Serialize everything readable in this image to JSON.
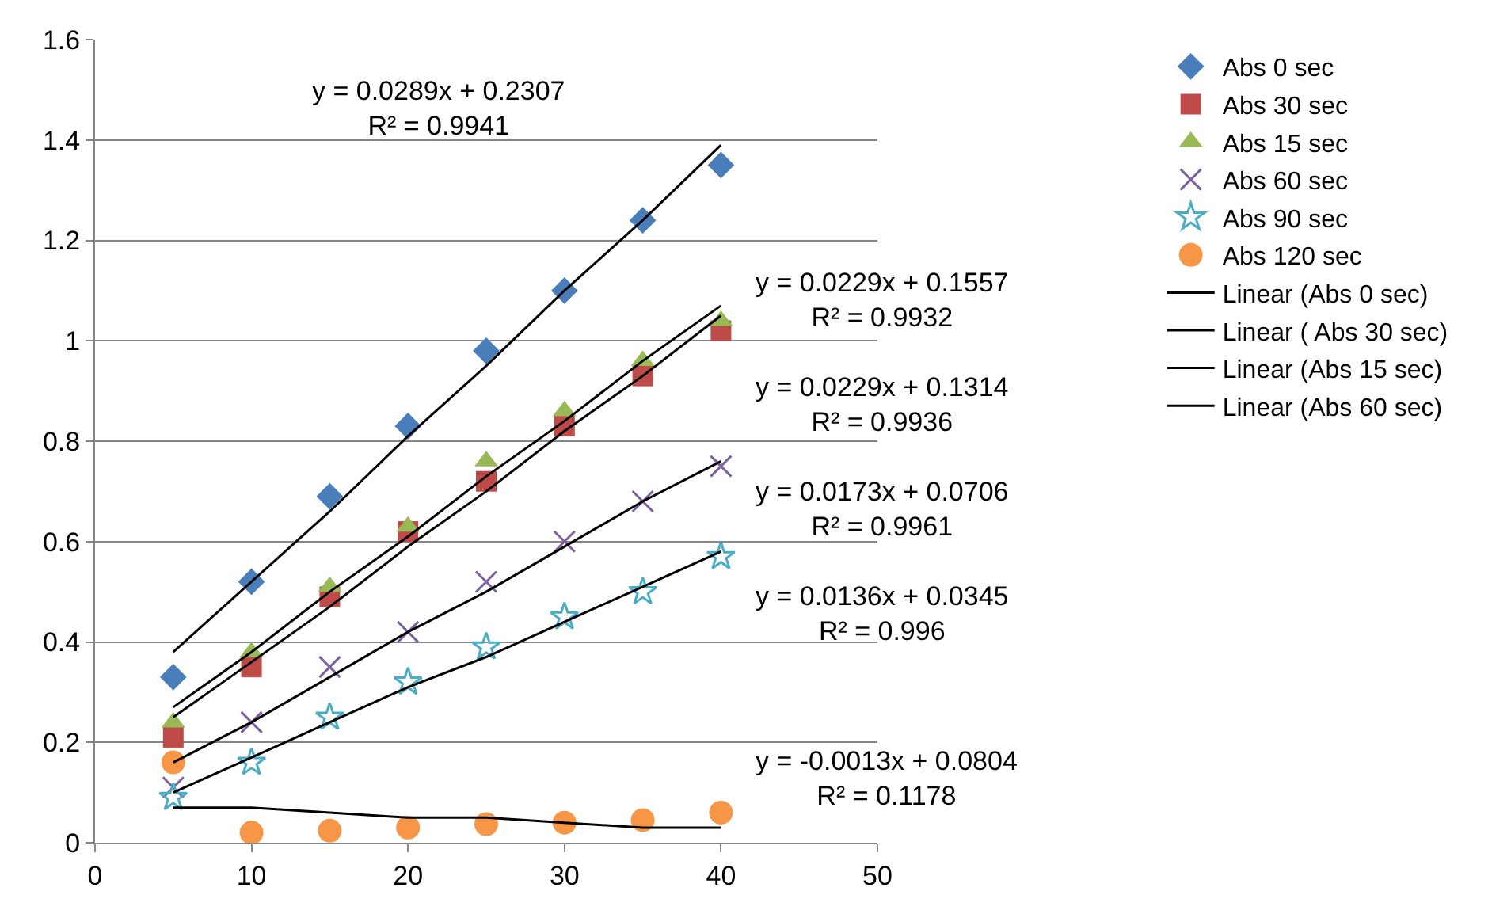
{
  "chart_data": {
    "type": "scatter",
    "x": [
      5,
      10,
      15,
      20,
      25,
      30,
      35,
      40
    ],
    "xlim": [
      0,
      50
    ],
    "xticks": [
      0,
      10,
      20,
      30,
      40,
      50
    ],
    "ylim": [
      0,
      1.6
    ],
    "yticks": [
      0,
      0.2,
      0.4,
      0.6,
      0.8,
      1,
      1.2,
      1.4,
      1.6
    ],
    "grid": "y",
    "legend": "right",
    "series": [
      {
        "name": "Abs 0 sec",
        "color": "#4a7ebb",
        "marker": "diamond",
        "values": [
          0.33,
          0.52,
          0.69,
          0.83,
          0.98,
          1.1,
          1.24,
          1.35
        ]
      },
      {
        "name": "Abs 30 sec",
        "color": "#be4b48",
        "marker": "square",
        "values": [
          0.21,
          0.35,
          0.49,
          0.62,
          0.72,
          0.83,
          0.93,
          1.02
        ]
      },
      {
        "name": "Abs 15 sec",
        "color": "#98b954",
        "marker": "triangle",
        "values": [
          0.24,
          0.38,
          0.51,
          0.63,
          0.76,
          0.86,
          0.96,
          1.04
        ]
      },
      {
        "name": "Abs 60 sec",
        "color": "#7d60a0",
        "marker": "cross",
        "values": [
          0.11,
          0.24,
          0.35,
          0.42,
          0.52,
          0.6,
          0.68,
          0.75
        ]
      },
      {
        "name": "Abs 90 sec",
        "color": "#4bacc6",
        "marker": "star",
        "values": [
          0.09,
          0.16,
          0.25,
          0.32,
          0.39,
          0.45,
          0.5,
          0.57
        ]
      },
      {
        "name": "Abs 120 sec",
        "color": "#f79646",
        "marker": "circle",
        "values": [
          0.16,
          0.02,
          0.024,
          0.03,
          0.037,
          0.04,
          0.045,
          0.06
        ]
      },
      {
        "name": "Linear (Abs 0 sec)",
        "type": "line",
        "color": "#000000",
        "marker": "none",
        "values": [
          0.38,
          0.52,
          0.66,
          0.81,
          0.95,
          1.1,
          1.24,
          1.39
        ]
      },
      {
        "name": "Linear ( Abs 30 sec)",
        "type": "line",
        "color": "#000000",
        "marker": "none",
        "values": [
          0.27,
          0.38,
          0.5,
          0.61,
          0.73,
          0.84,
          0.96,
          1.07
        ]
      },
      {
        "name": "Linear (Abs 15 sec)",
        "type": "line",
        "color": "#000000",
        "marker": "none",
        "values": [
          0.25,
          0.36,
          0.47,
          0.59,
          0.7,
          0.82,
          0.93,
          1.05
        ]
      },
      {
        "name": "Linear (Abs 60 sec)",
        "type": "line",
        "color": "#000000",
        "marker": "none",
        "values": [
          0.16,
          0.24,
          0.33,
          0.42,
          0.5,
          0.59,
          0.68,
          0.76
        ]
      },
      {
        "type": "line",
        "color": "#000000",
        "marker": "none",
        "values": [
          0.1,
          0.17,
          0.24,
          0.31,
          0.37,
          0.44,
          0.51,
          0.58
        ]
      },
      {
        "type": "line",
        "color": "#000000",
        "marker": "none",
        "values": [
          0.07,
          0.07,
          0.06,
          0.05,
          0.05,
          0.04,
          0.03,
          0.03
        ]
      }
    ],
    "annotations": [
      "y = 0.0289x + 0.2307\nR² = 0.9941",
      "y = 0.0229x + 0.1557\nR² = 0.9932",
      "y = 0.0229x + 0.1314\nR² = 0.9936",
      "y = 0.0173x + 0.0706\nR² = 0.9961",
      "y = 0.0136x + 0.0345\nR² = 0.996",
      "y = -0.0013x + 0.0804\nR² = 0.1178"
    ]
  }
}
